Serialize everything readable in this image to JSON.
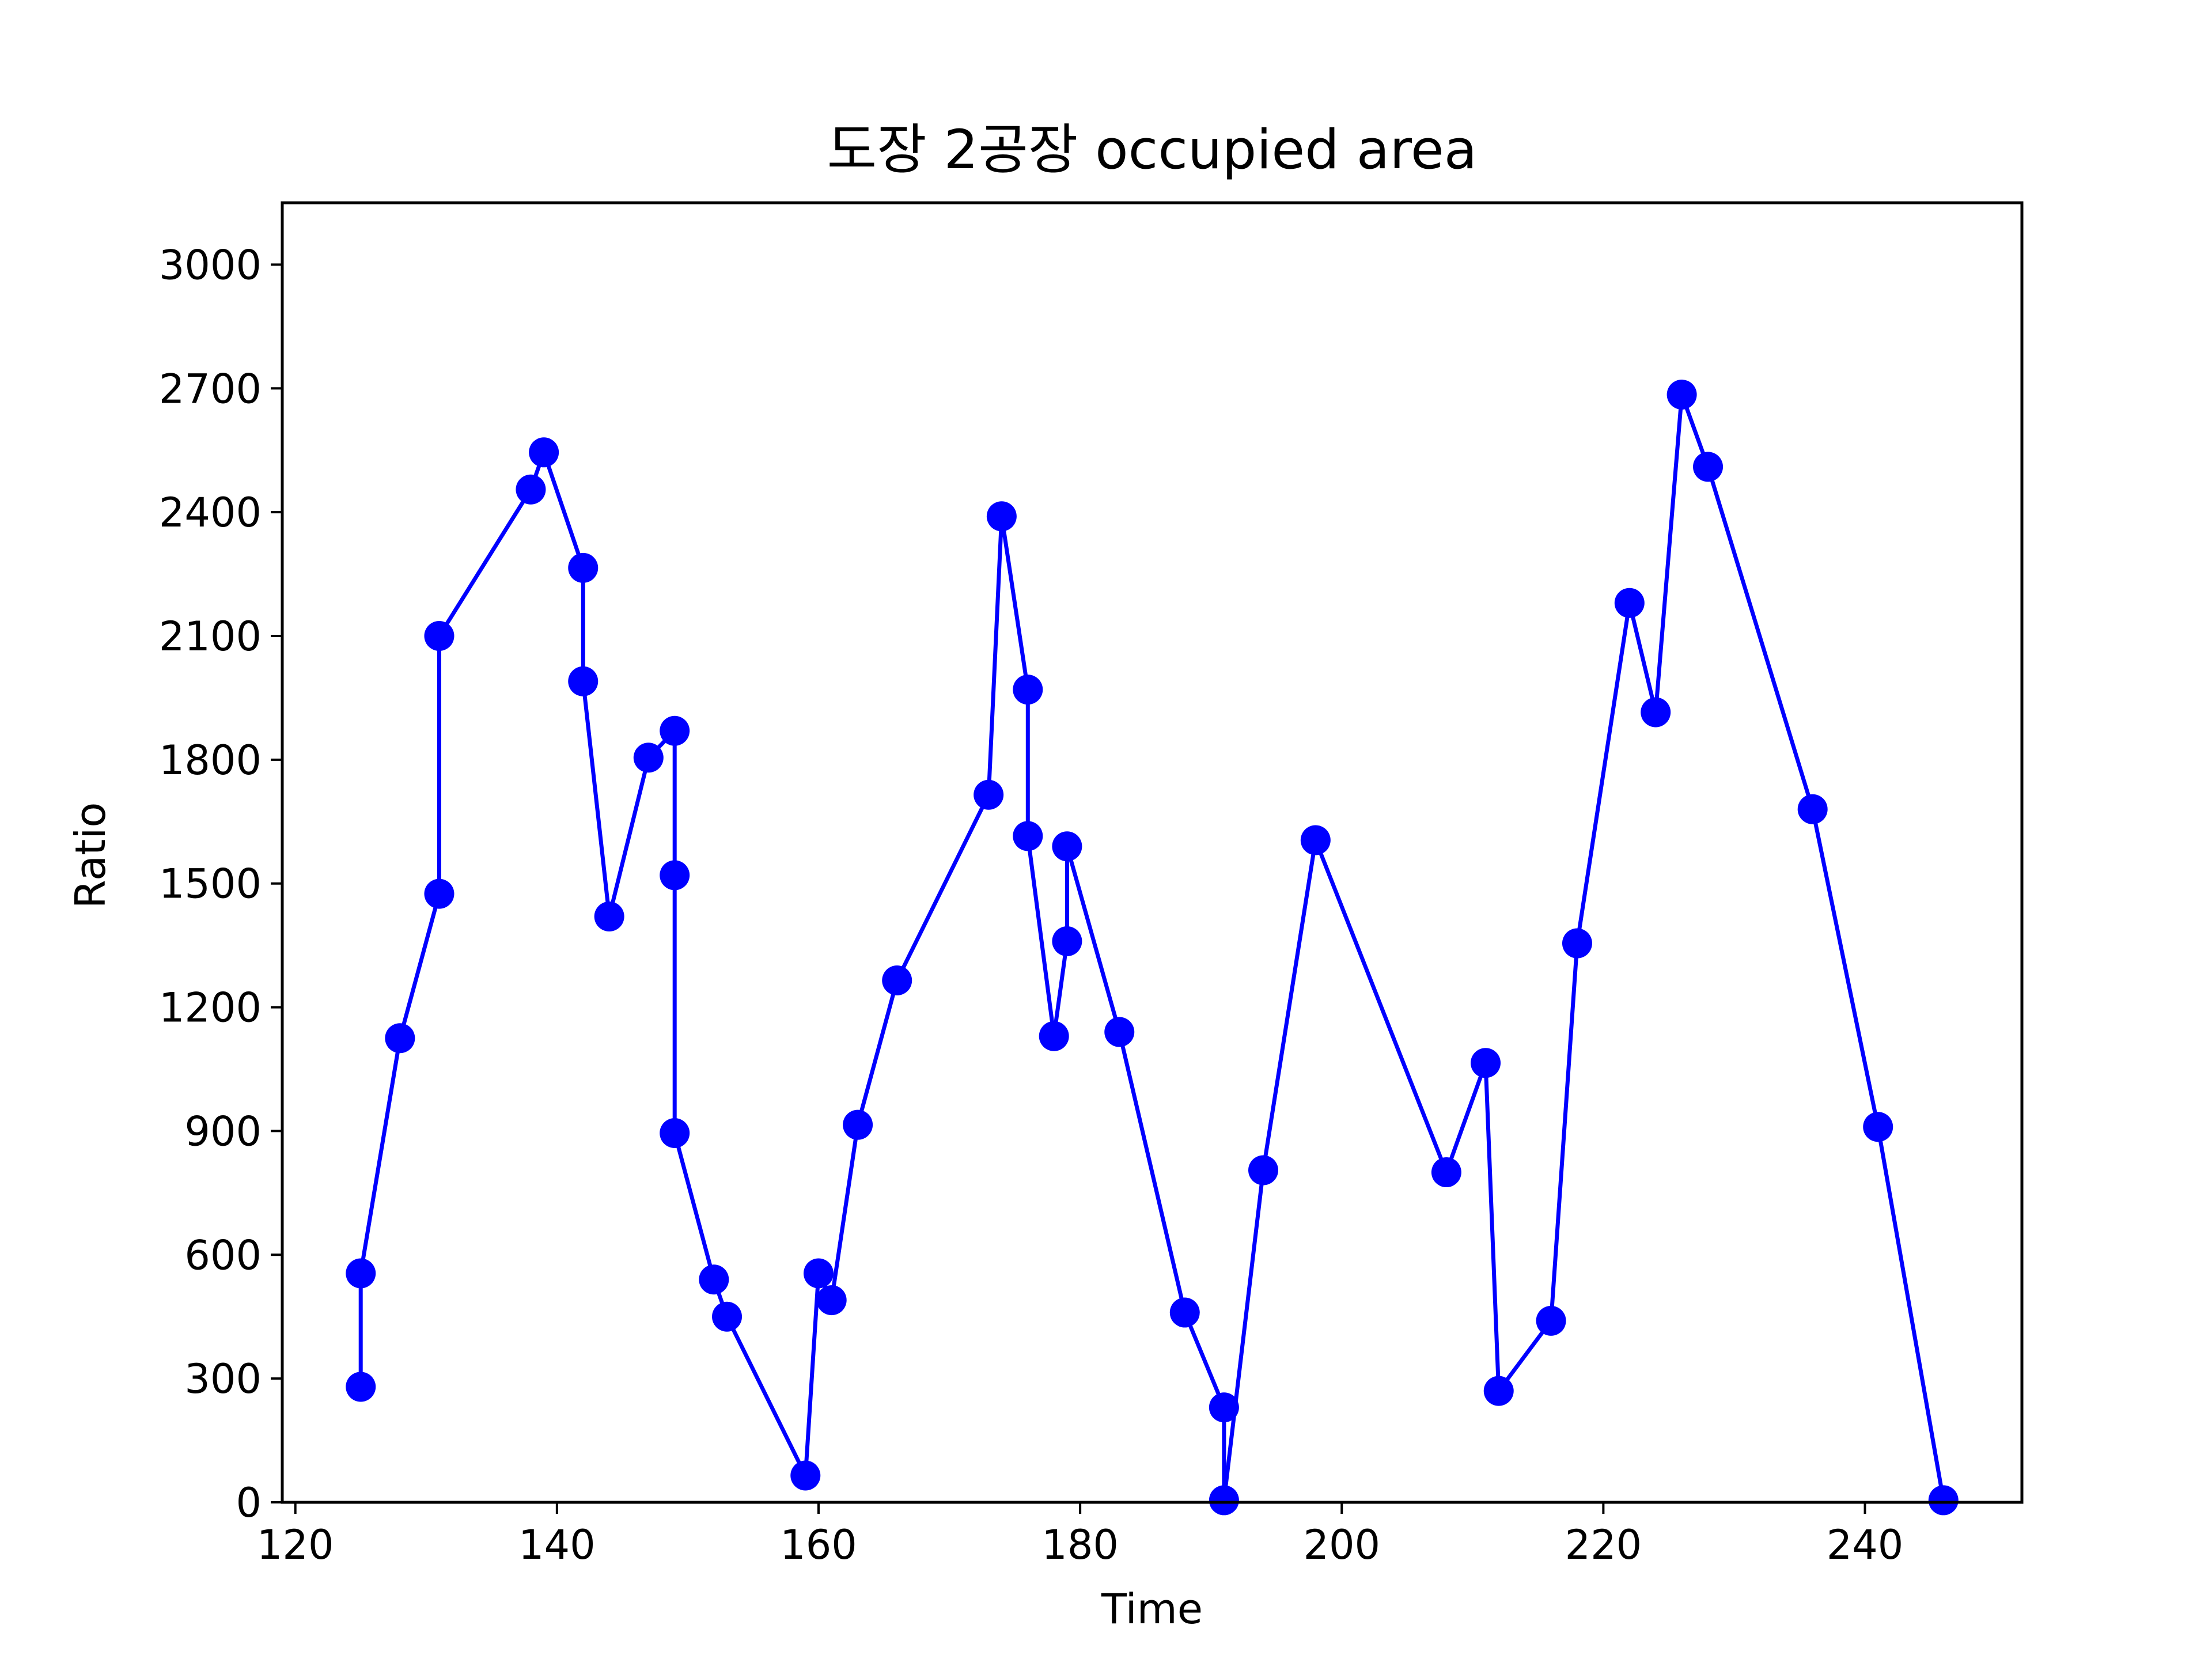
{
  "chart_data": {
    "type": "line",
    "title": "도장 2공장 occupied area",
    "xlabel": "Time",
    "ylabel": "Ratio",
    "xlim": [
      119,
      252
    ],
    "ylim": [
      0,
      3150
    ],
    "xticks": [
      120,
      140,
      160,
      180,
      200,
      220,
      240
    ],
    "yticks": [
      0,
      300,
      600,
      900,
      1200,
      1500,
      1800,
      2100,
      2400,
      2700,
      3000
    ],
    "grid": false,
    "legend": "none",
    "series": [
      {
        "color": "#0000ff",
        "marker": "circle",
        "x": [
          125,
          125,
          128,
          131,
          131,
          138,
          139,
          142,
          142,
          144,
          147,
          149,
          149,
          149,
          152,
          153,
          159,
          160,
          161,
          163,
          166,
          173,
          174,
          176,
          176,
          178,
          179,
          179,
          183,
          188,
          191,
          191,
          194,
          198,
          208,
          211,
          212,
          216,
          218,
          222,
          224,
          226,
          228,
          236,
          241,
          246
        ],
        "y": [
          280,
          555,
          1125,
          1475,
          2100,
          2455,
          2545,
          2265,
          1990,
          1420,
          1805,
          1870,
          1520,
          895,
          540,
          450,
          65,
          555,
          490,
          915,
          1265,
          1715,
          2390,
          1970,
          1615,
          1130,
          1360,
          1590,
          1140,
          460,
          230,
          5,
          805,
          1605,
          800,
          1065,
          270,
          440,
          1355,
          2180,
          1915,
          2685,
          2510,
          1680,
          910,
          5
        ]
      }
    ]
  }
}
